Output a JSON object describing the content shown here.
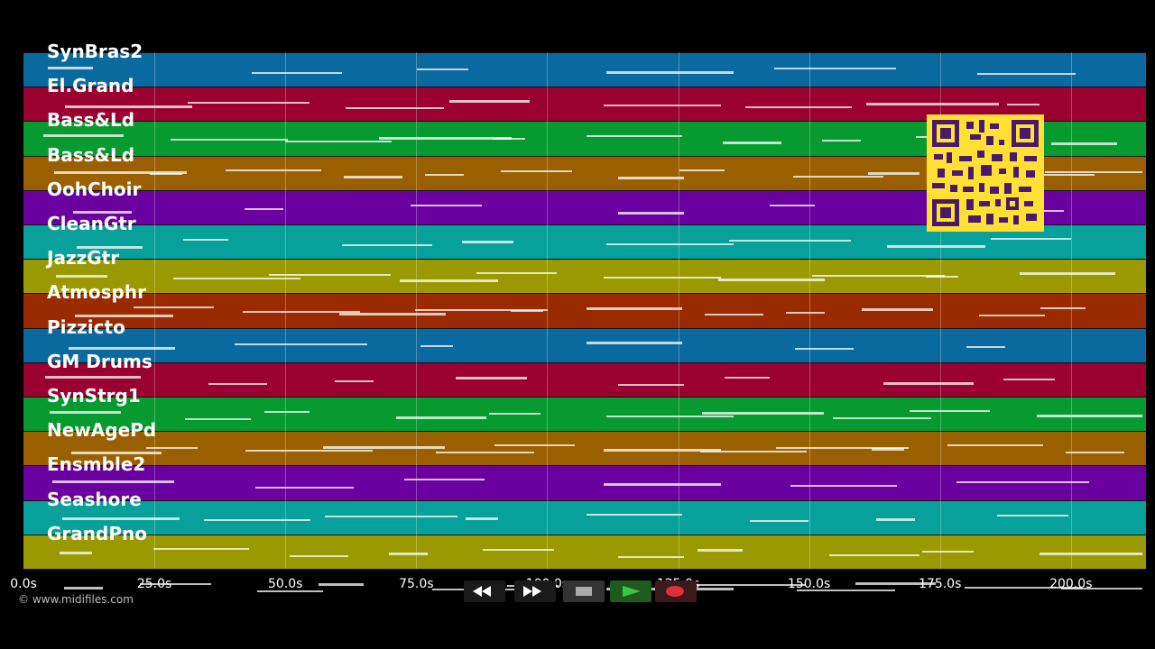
{
  "tracks": [
    {
      "name": "SynBras2",
      "color": "#0a6aa0"
    },
    {
      "name": "El.Grand",
      "color": "#9a0030"
    },
    {
      "name": "Bass&Ld",
      "color": "#079a30"
    },
    {
      "name": "Bass&Ld",
      "color": "#9a6000"
    },
    {
      "name": "OohChoir",
      "color": "#6a00a0"
    },
    {
      "name": "CleanGtr",
      "color": "#07a09a"
    },
    {
      "name": "JazzGtr",
      "color": "#9a9a00"
    },
    {
      "name": "Atmosphr",
      "color": "#9a2a00"
    },
    {
      "name": "Pizzicto",
      "color": "#0a6aa0"
    },
    {
      "name": "GM Drums",
      "color": "#9a0030"
    },
    {
      "name": "SynStrg1",
      "color": "#079a30"
    },
    {
      "name": "NewAgePd",
      "color": "#9a6000"
    },
    {
      "name": "Ensmble2",
      "color": "#6a00a0"
    },
    {
      "name": "Seashore",
      "color": "#07a09a"
    },
    {
      "name": "GrandPno",
      "color": "#9a9a00"
    }
  ],
  "last_track_color": "#9a9a00",
  "time_ticks": [
    "0.0s",
    "25.0s",
    "50.0s",
    "75.0s",
    "100.0s",
    "125.0s",
    "150.0s",
    "175.0s",
    "200.0s"
  ],
  "copyright": "© www.midifiles.com",
  "controls": {
    "rewind_icon": "rewind-icon",
    "fast_forward_icon": "fast-forward-icon",
    "stop_icon": "stop-icon",
    "play_icon": "play-icon",
    "record_icon": "record-icon",
    "accent_play": "#3cc83c",
    "accent_record": "#e03040"
  },
  "qr_color": "#ffe033"
}
